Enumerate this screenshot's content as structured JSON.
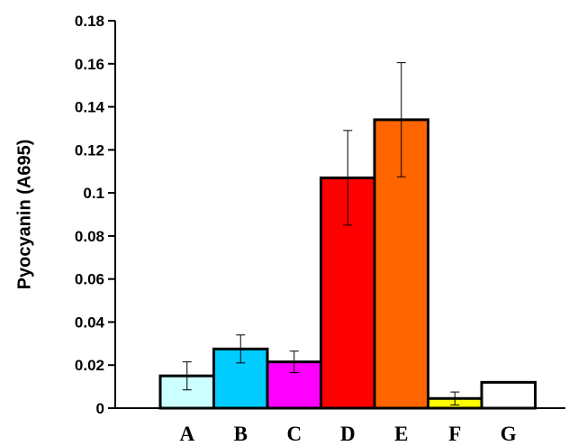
{
  "chart_data": {
    "type": "bar",
    "title": "",
    "xlabel": "",
    "ylabel": "Pyocyanin (A695)",
    "categories": [
      "A",
      "B",
      "C",
      "D",
      "E",
      "F",
      "G"
    ],
    "values": [
      0.015,
      0.0275,
      0.0215,
      0.107,
      0.134,
      0.0045,
      0.012
    ],
    "errors": [
      0.0065,
      0.0065,
      0.005,
      0.022,
      0.0265,
      0.003,
      0
    ],
    "colors": [
      "#ccffff",
      "#00ccff",
      "#ff00ff",
      "#ff0000",
      "#ff6600",
      "#ffff00",
      "#ffffff"
    ],
    "ylim": [
      0,
      0.18
    ],
    "yticks": [
      0,
      0.02,
      0.04,
      0.06,
      0.08,
      0.1,
      0.12,
      0.14,
      0.16,
      0.18
    ],
    "ytick_labels": [
      "0",
      "0.02",
      "0.04",
      "0.06",
      "0.08",
      "0.1",
      "0.12",
      "0.14",
      "0.16",
      "0.18"
    ],
    "grid": false,
    "legend": "none"
  }
}
